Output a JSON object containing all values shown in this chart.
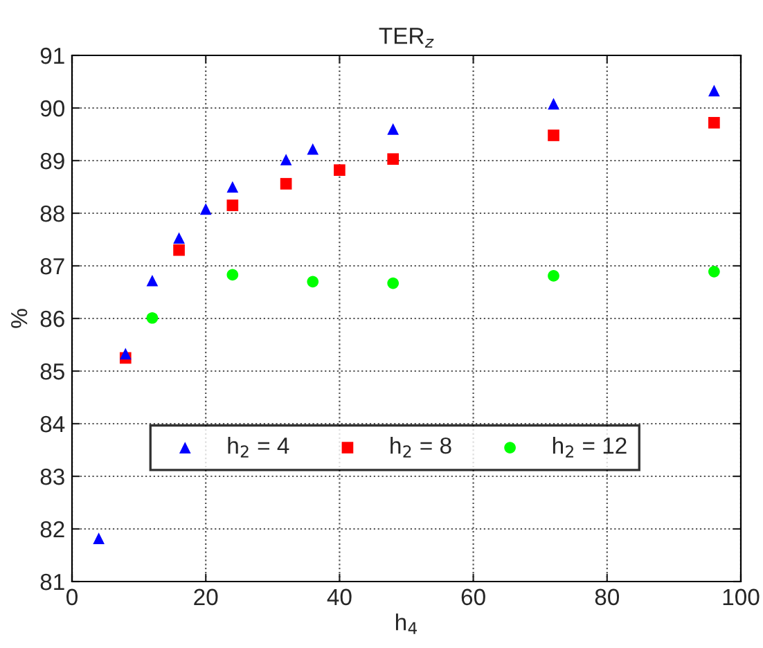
{
  "chart_data": {
    "type": "scatter",
    "title": "TER$_{z}$",
    "xlabel": "h$_{4}$",
    "ylabel": "%",
    "xlim": [
      0,
      100
    ],
    "xticks": [
      0,
      20,
      40,
      60,
      80,
      100
    ],
    "ylim": [
      81,
      91
    ],
    "yticks": [
      81,
      82,
      83,
      84,
      85,
      86,
      87,
      88,
      89,
      90,
      91
    ],
    "grid": true,
    "legend": "bottom left",
    "series": [
      {
        "name": "h$_{2}$ = 4",
        "color": "#0000ff",
        "marker": "triangle",
        "x": [
          4,
          8,
          12,
          16,
          20,
          24,
          32,
          36,
          48,
          72,
          96
        ],
        "values": [
          81.82,
          85.33,
          86.72,
          87.53,
          88.08,
          88.5,
          89.02,
          89.22,
          89.6,
          90.08,
          90.33
        ]
      },
      {
        "name": "h$_{2}$ = 8",
        "color": "#ff0000",
        "marker": "square",
        "x": [
          8,
          16,
          24,
          32,
          40,
          48,
          72,
          96
        ],
        "values": [
          85.25,
          87.3,
          88.15,
          88.56,
          88.82,
          89.03,
          89.48,
          89.72
        ]
      },
      {
        "name": "h$_{2}$ = 12",
        "color": "#00ff00",
        "marker": "circle",
        "x": [
          12,
          24,
          36,
          48,
          72,
          96
        ],
        "values": [
          86.01,
          86.83,
          86.7,
          86.67,
          86.81,
          86.89
        ]
      }
    ]
  }
}
